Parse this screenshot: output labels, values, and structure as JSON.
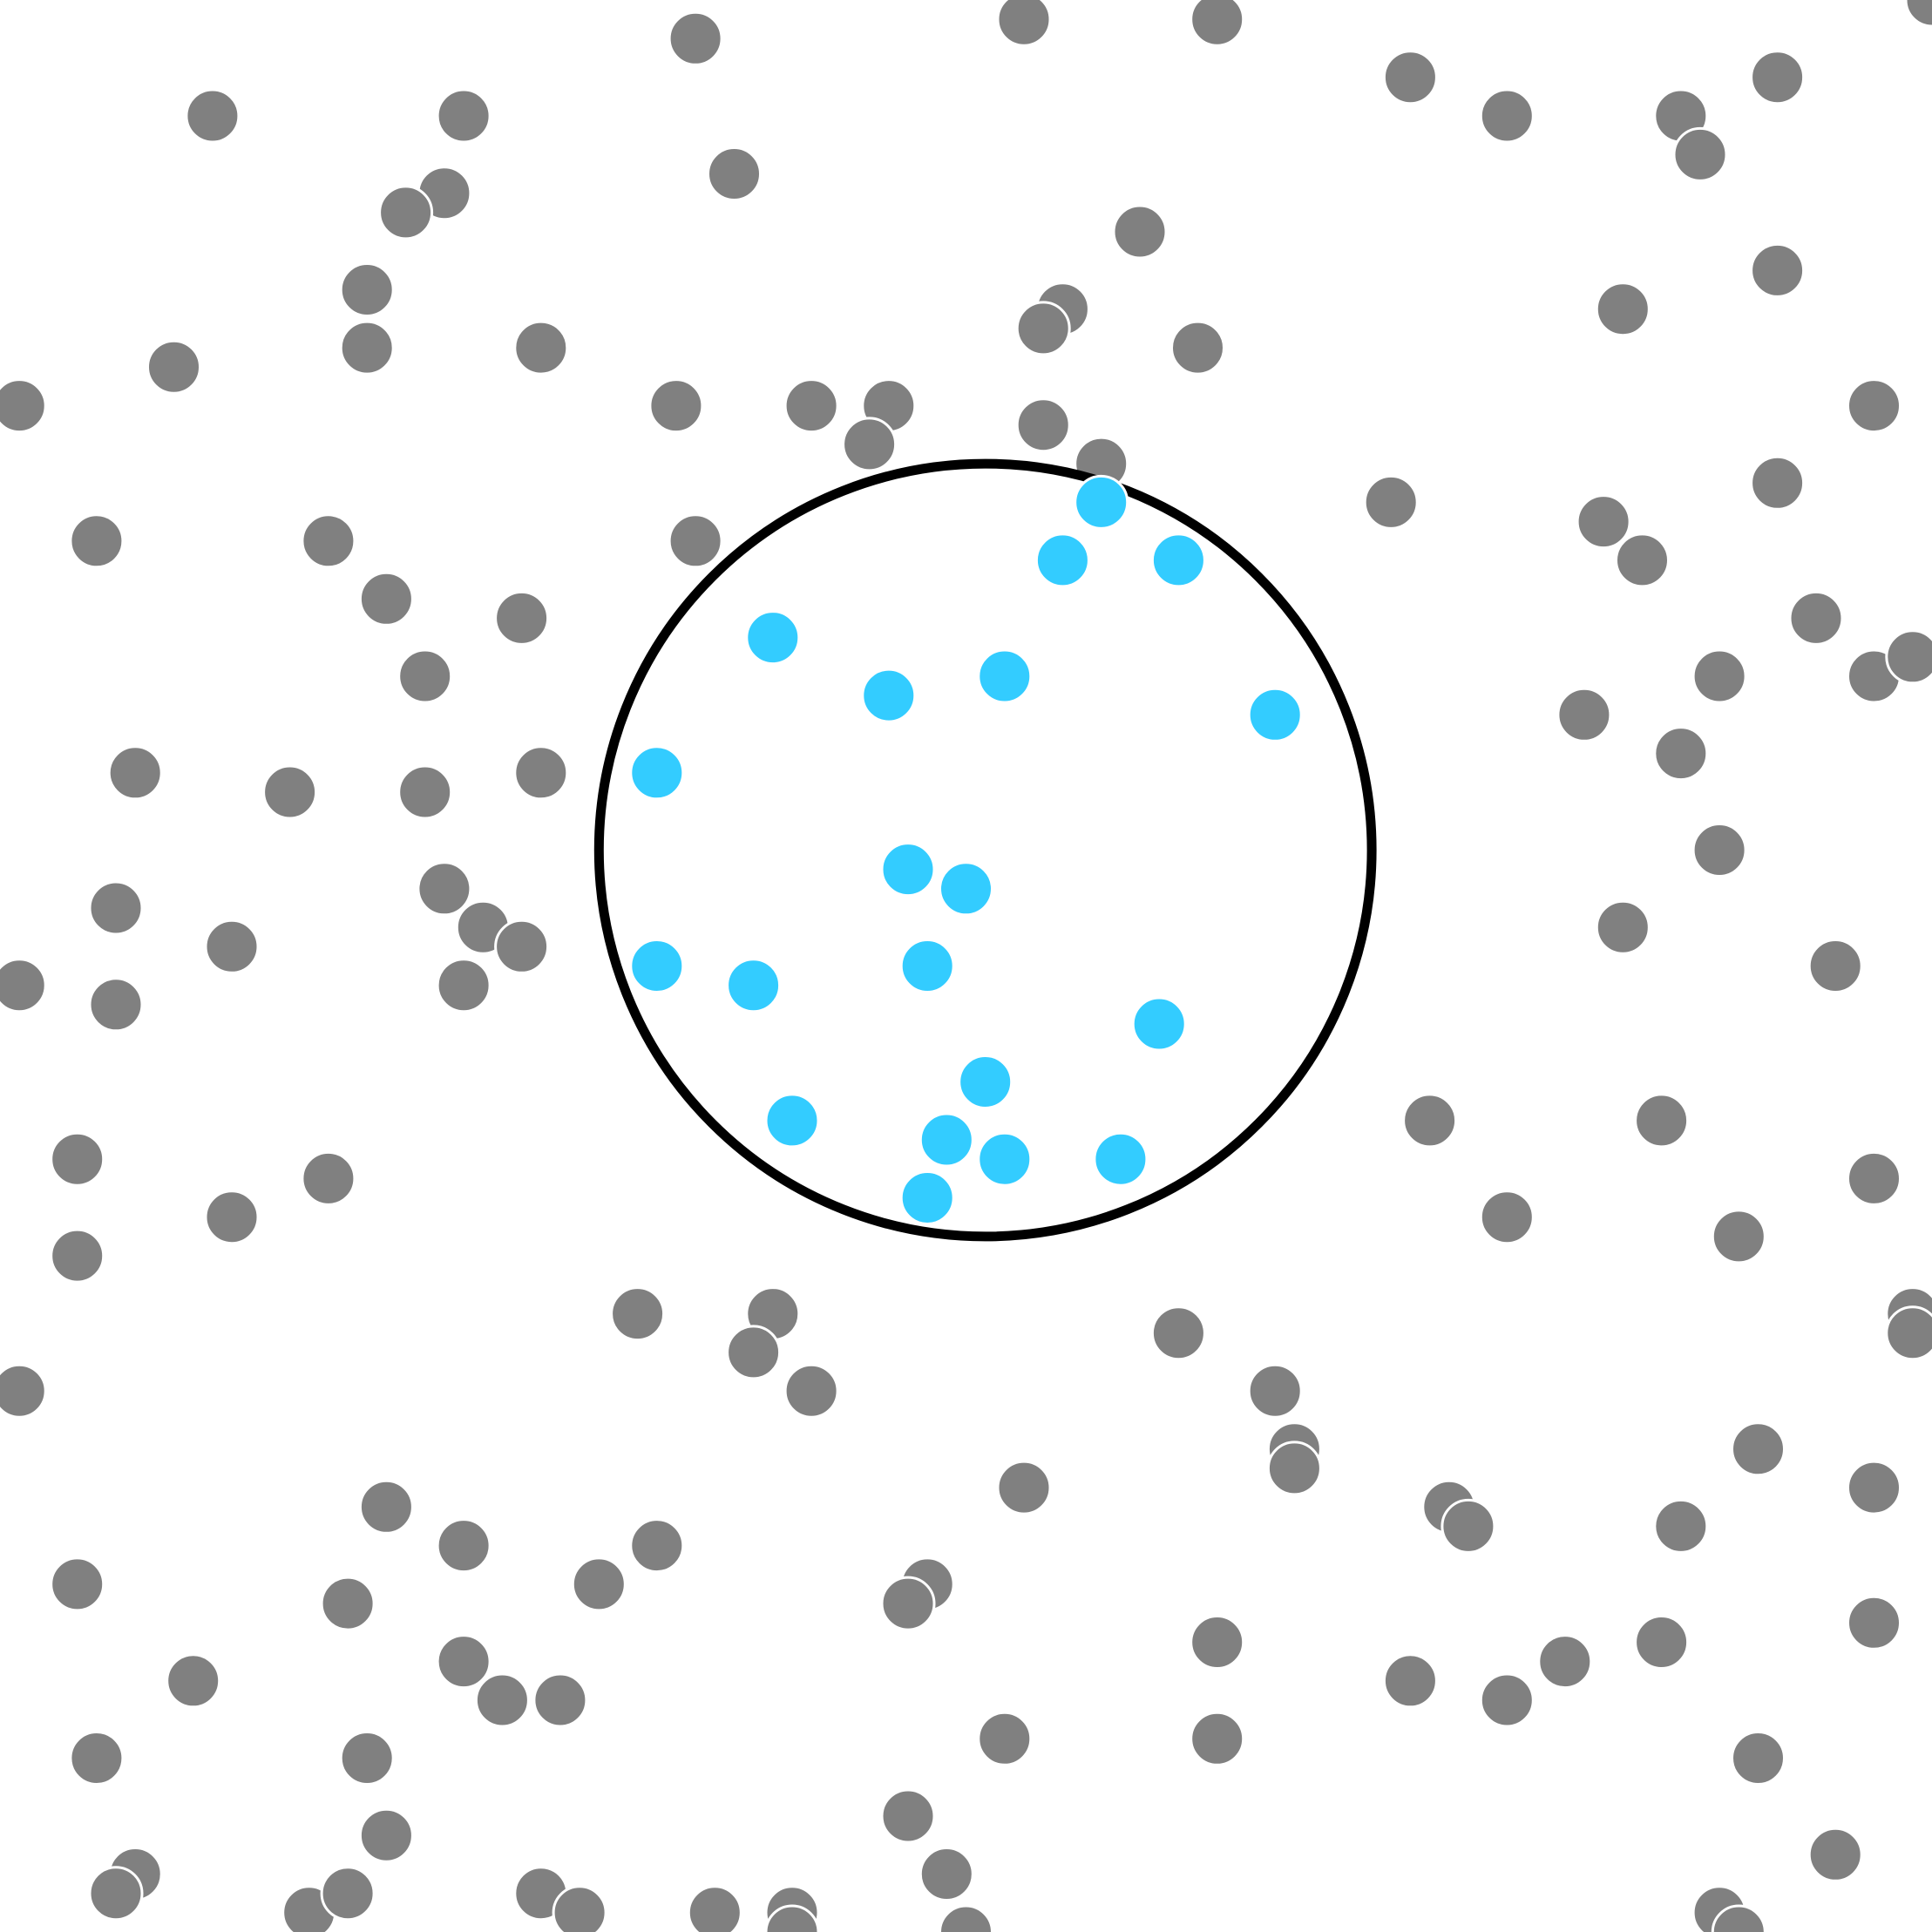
{
  "colors": {
    "background": "#ffffff",
    "outside_dot": "#808080",
    "inside_dot": "#33ccff",
    "circle_stroke": "#000000"
  },
  "chart_data": {
    "type": "scatter",
    "x_range": [
      0,
      100
    ],
    "y_range": [
      0,
      100
    ],
    "grid": false,
    "legend": "none",
    "region": {
      "shape": "circle",
      "center": [
        51,
        56
      ],
      "radius": 20
    },
    "series": [
      {
        "color": "#808080",
        "points": [
          [
            36,
            98
          ],
          [
            53,
            99
          ],
          [
            63,
            99
          ],
          [
            73,
            96
          ],
          [
            78,
            94
          ],
          [
            87,
            94
          ],
          [
            88,
            92
          ],
          [
            92,
            96
          ],
          [
            100,
            100
          ],
          [
            11,
            94
          ],
          [
            24,
            94
          ],
          [
            38,
            91
          ],
          [
            23,
            90
          ],
          [
            21,
            89
          ],
          [
            19,
            85
          ],
          [
            19,
            82
          ],
          [
            28,
            82
          ],
          [
            9,
            81
          ],
          [
            1,
            79
          ],
          [
            59,
            88
          ],
          [
            55,
            84
          ],
          [
            54,
            83
          ],
          [
            62,
            82
          ],
          [
            35,
            79
          ],
          [
            42,
            79
          ],
          [
            46,
            79
          ],
          [
            45,
            77
          ],
          [
            54,
            78
          ],
          [
            57,
            76
          ],
          [
            72,
            74
          ],
          [
            92,
            86
          ],
          [
            84,
            84
          ],
          [
            97,
            79
          ],
          [
            92,
            75
          ],
          [
            83,
            73
          ],
          [
            85,
            71
          ],
          [
            94,
            68
          ],
          [
            97,
            65
          ],
          [
            99,
            66
          ],
          [
            89,
            65
          ],
          [
            82,
            63
          ],
          [
            87,
            61
          ],
          [
            89,
            56
          ],
          [
            84,
            52
          ],
          [
            95,
            50
          ],
          [
            5,
            72
          ],
          [
            17,
            72
          ],
          [
            20,
            69
          ],
          [
            27,
            68
          ],
          [
            36,
            72
          ],
          [
            22,
            65
          ],
          [
            7,
            60
          ],
          [
            15,
            59
          ],
          [
            22,
            59
          ],
          [
            28,
            60
          ],
          [
            23,
            54
          ],
          [
            25,
            52
          ],
          [
            27,
            51
          ],
          [
            24,
            49
          ],
          [
            6,
            53
          ],
          [
            1,
            49
          ],
          [
            6,
            48
          ],
          [
            12,
            51
          ],
          [
            4,
            40
          ],
          [
            4,
            35
          ],
          [
            12,
            37
          ],
          [
            17,
            39
          ],
          [
            33,
            32
          ],
          [
            40,
            32
          ],
          [
            39,
            30
          ],
          [
            42,
            28
          ],
          [
            61,
            31
          ],
          [
            66,
            28
          ],
          [
            67,
            25
          ],
          [
            67,
            24
          ],
          [
            74,
            42
          ],
          [
            78,
            37
          ],
          [
            86,
            42
          ],
          [
            90,
            36
          ],
          [
            97,
            39
          ],
          [
            99,
            32
          ],
          [
            99,
            31
          ],
          [
            91,
            25
          ],
          [
            1,
            28
          ],
          [
            20,
            22
          ],
          [
            24,
            20
          ],
          [
            53,
            23
          ],
          [
            75,
            22
          ],
          [
            76,
            21
          ],
          [
            87,
            21
          ],
          [
            97,
            23
          ],
          [
            4,
            18
          ],
          [
            18,
            17
          ],
          [
            31,
            18
          ],
          [
            34,
            20
          ],
          [
            48,
            18
          ],
          [
            47,
            17
          ],
          [
            10,
            13
          ],
          [
            24,
            14
          ],
          [
            26,
            12
          ],
          [
            29,
            12
          ],
          [
            63,
            15
          ],
          [
            73,
            13
          ],
          [
            78,
            12
          ],
          [
            81,
            14
          ],
          [
            86,
            15
          ],
          [
            97,
            16
          ],
          [
            5,
            9
          ],
          [
            19,
            9
          ],
          [
            52,
            10
          ],
          [
            63,
            10
          ],
          [
            91,
            9
          ],
          [
            7,
            3
          ],
          [
            6,
            2
          ],
          [
            16,
            1
          ],
          [
            18,
            2
          ],
          [
            20,
            5
          ],
          [
            28,
            2
          ],
          [
            30,
            1
          ],
          [
            37,
            1
          ],
          [
            41,
            1
          ],
          [
            41,
            0
          ],
          [
            47,
            6
          ],
          [
            49,
            3
          ],
          [
            50,
            0
          ],
          [
            89,
            1
          ],
          [
            90,
            0
          ],
          [
            95,
            4
          ]
        ]
      },
      {
        "color": "#33ccff",
        "points": [
          [
            57,
            74
          ],
          [
            55,
            71
          ],
          [
            61,
            71
          ],
          [
            40,
            67
          ],
          [
            46,
            64
          ],
          [
            52,
            65
          ],
          [
            66,
            63
          ],
          [
            34,
            60
          ],
          [
            47,
            55
          ],
          [
            50,
            54
          ],
          [
            34,
            50
          ],
          [
            39,
            49
          ],
          [
            48,
            50
          ],
          [
            60,
            47
          ],
          [
            51,
            44
          ],
          [
            41,
            42
          ],
          [
            49,
            41
          ],
          [
            52,
            40
          ],
          [
            58,
            40
          ],
          [
            48,
            38
          ]
        ]
      }
    ]
  }
}
